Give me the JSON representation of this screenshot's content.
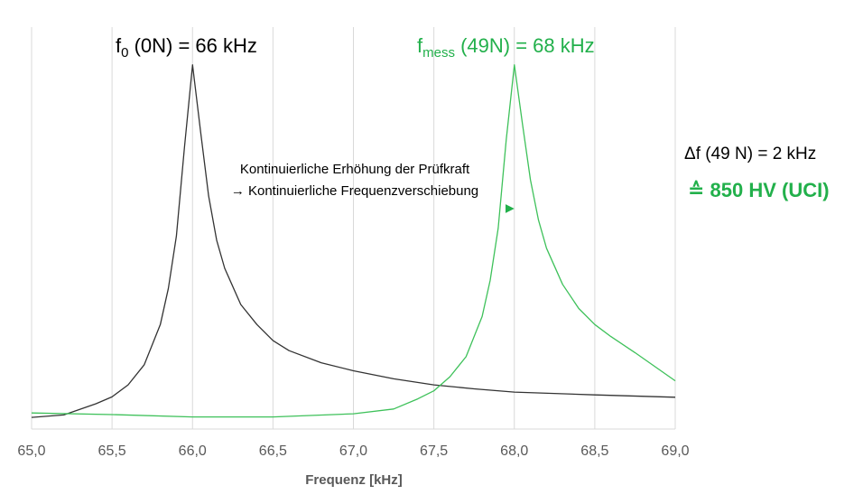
{
  "chart_data": {
    "type": "line",
    "x_label": "Frequenz [kHz]",
    "xlim": [
      65,
      69
    ],
    "xticks": [
      {
        "value": 65,
        "label": "65,0"
      },
      {
        "value": 65.5,
        "label": "65,5"
      },
      {
        "value": 66,
        "label": "66,0"
      },
      {
        "value": 66.5,
        "label": "66,5"
      },
      {
        "value": 67,
        "label": "67,0"
      },
      {
        "value": 67.5,
        "label": "67,5"
      },
      {
        "value": 68,
        "label": "68,0"
      },
      {
        "value": 68.5,
        "label": "68,5"
      },
      {
        "value": 69,
        "label": "69,0"
      }
    ],
    "ylim": [
      0,
      100
    ],
    "grid": "x",
    "series": [
      {
        "color": "#333333",
        "x": [
          65.0,
          65.2,
          65.4,
          65.5,
          65.6,
          65.7,
          65.8,
          65.85,
          65.9,
          65.95,
          66.0,
          66.05,
          66.1,
          66.15,
          66.2,
          66.3,
          66.4,
          66.5,
          66.6,
          66.8,
          67.0,
          67.25,
          67.5,
          67.75,
          68.0,
          68.5,
          69.0
        ],
        "values": [
          2.9,
          3.5,
          6.3,
          8,
          11,
          16,
          26,
          35,
          48,
          70,
          90.6,
          74,
          58,
          47,
          40,
          31,
          26,
          22,
          19.5,
          16.5,
          14.5,
          12.5,
          11,
          10,
          9.2,
          8.5,
          7.9
        ]
      },
      {
        "color": "#3ec15a",
        "x": [
          65.0,
          65.5,
          66.0,
          66.5,
          67.0,
          67.25,
          67.4,
          67.5,
          67.6,
          67.7,
          67.8,
          67.85,
          67.9,
          67.95,
          68.0,
          68.05,
          68.1,
          68.15,
          68.2,
          68.3,
          68.4,
          68.5,
          68.6,
          68.75,
          69.0
        ],
        "values": [
          4.0,
          3.6,
          3.0,
          3.0,
          3.8,
          5.0,
          7.5,
          9.5,
          13,
          18,
          28,
          37,
          50,
          72,
          90.6,
          76,
          62,
          52,
          45,
          36,
          30,
          26,
          23,
          19,
          12
        ]
      }
    ],
    "annotations": [
      {
        "parts": [
          "f",
          "0",
          " (0N) = 66 kHz"
        ],
        "color": "#000000"
      },
      {
        "parts": [
          "f",
          "mess",
          " (49N) = 68 kHz"
        ],
        "color": "#22b04b"
      },
      {
        "text": "Kontinuierliche Erhöhung der Prüfkraft",
        "color": "#000000"
      },
      {
        "text": "→ Kontinuierliche Frequenzverschiebung",
        "color": "#000000"
      },
      {
        "text": "Δf (49 N) = 2 kHz",
        "color": "#000000"
      },
      {
        "text": "≙ 850 HV (UCI)",
        "color": "#22b04b"
      }
    ]
  }
}
